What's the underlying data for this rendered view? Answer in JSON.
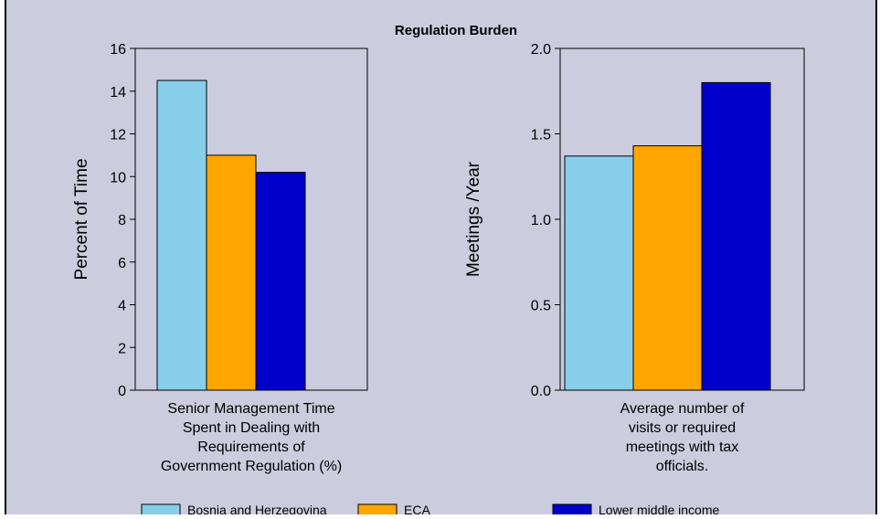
{
  "title": "Regulation Burden",
  "colors": {
    "background": "#ccccdf",
    "plot_background": "#ccccdf",
    "Bosnia and Herzegovina": "#87ceeb",
    "ECA": "#ffa500",
    "Lower middle income": "#0000cd"
  },
  "chart_data": [
    {
      "type": "bar",
      "title": "Regulation Burden",
      "categories": [
        "Senior Management Time Spent in Dealing with Requirements of Government Regulation (%)"
      ],
      "category_label_lines": [
        "Senior Management Time",
        "Spent in Dealing with",
        "Requirements of",
        "Government Regulation (%)"
      ],
      "series": [
        {
          "name": "Bosnia and Herzegovina",
          "values": [
            14.5
          ]
        },
        {
          "name": "ECA",
          "values": [
            11.0
          ]
        },
        {
          "name": "Lower middle income",
          "values": [
            10.2
          ]
        }
      ],
      "xlabel": "",
      "ylabel": "Percent of Time",
      "ylim": [
        0,
        16
      ],
      "yticks": [
        "0",
        "2",
        "4",
        "6",
        "8",
        "10",
        "12",
        "14",
        "16"
      ],
      "grid": false
    },
    {
      "type": "bar",
      "categories": [
        "Average number of visits or required meetings with tax officials."
      ],
      "category_label_lines": [
        "Average number of",
        "visits or required",
        "meetings with tax",
        "officials."
      ],
      "series": [
        {
          "name": "Bosnia and Herzegovina",
          "values": [
            1.37
          ]
        },
        {
          "name": "ECA",
          "values": [
            1.43
          ]
        },
        {
          "name": "Lower middle income",
          "values": [
            1.8
          ]
        }
      ],
      "xlabel": "",
      "ylabel": "Meetings /Year",
      "ylim": [
        0,
        2.0
      ],
      "yticks": [
        "0.0",
        "0.5",
        "1.0",
        "1.5",
        "2.0"
      ],
      "grid": false
    }
  ],
  "legend": {
    "placement": "bottom",
    "items": [
      {
        "label": "Bosnia and Herzegovina",
        "color": "#87ceeb"
      },
      {
        "label": "ECA",
        "color": "#ffa500"
      },
      {
        "label": "Lower middle income",
        "color": "#0000cd"
      }
    ]
  }
}
